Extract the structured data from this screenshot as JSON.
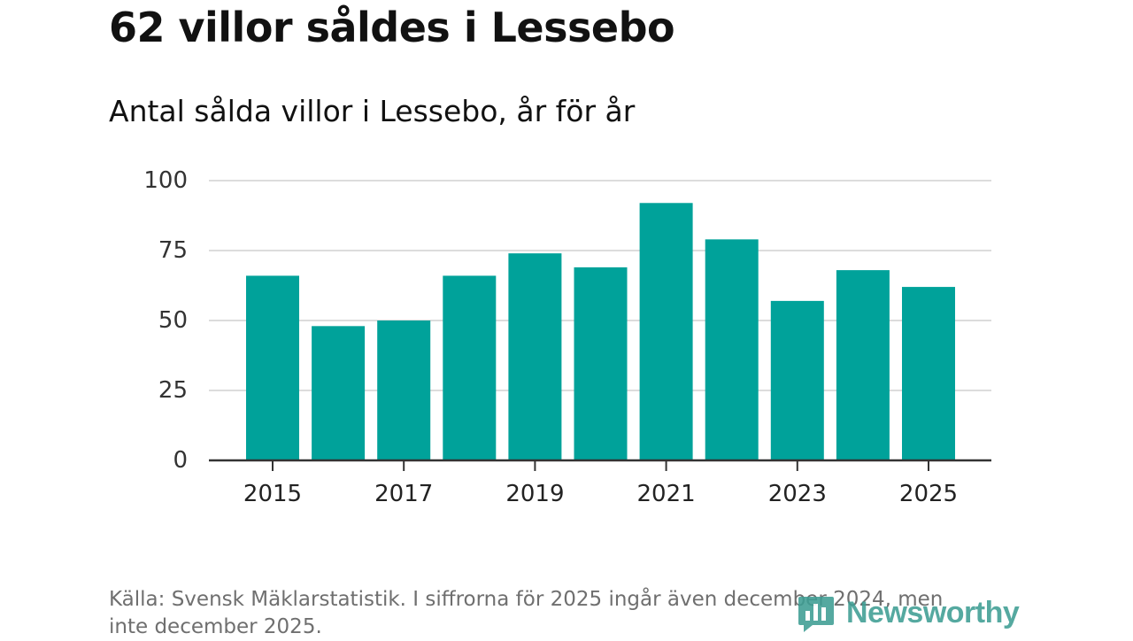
{
  "header": {
    "title": "62 villor såldes i Lessebo",
    "subtitle": "Antal sålda villor i Lessebo, år för år"
  },
  "chart_data": {
    "type": "bar",
    "title": "62 villor såldes i Lessebo",
    "subtitle": "Antal sålda villor i Lessebo, år för år",
    "xlabel": "",
    "ylabel": "",
    "categories": [
      "2015",
      "2016",
      "2017",
      "2018",
      "2019",
      "2020",
      "2021",
      "2022",
      "2023",
      "2024",
      "2025"
    ],
    "x_tick_labels": [
      "2015",
      "2017",
      "2019",
      "2021",
      "2023",
      "2025"
    ],
    "values": [
      66,
      48,
      50,
      66,
      74,
      69,
      92,
      79,
      57,
      68,
      62
    ],
    "y_ticks": [
      0,
      25,
      50,
      75,
      100
    ],
    "ylim": [
      0,
      100
    ],
    "grid": true,
    "legend": "none",
    "bar_color": "#00a29a"
  },
  "footer": {
    "source": "Källa: Svensk Mäklarstatistik. I siffrorna för 2025 ingår även december 2024, men inte december 2025.",
    "brand": "Newsworthy",
    "brand_icon": "newsworthy-logo-icon"
  },
  "colors": {
    "bar": "#00a29a",
    "gridline": "#dcdcdc",
    "axis": "#333333",
    "text": "#111111",
    "source_text": "#6f6f6f",
    "brand": "#3e9e94"
  }
}
